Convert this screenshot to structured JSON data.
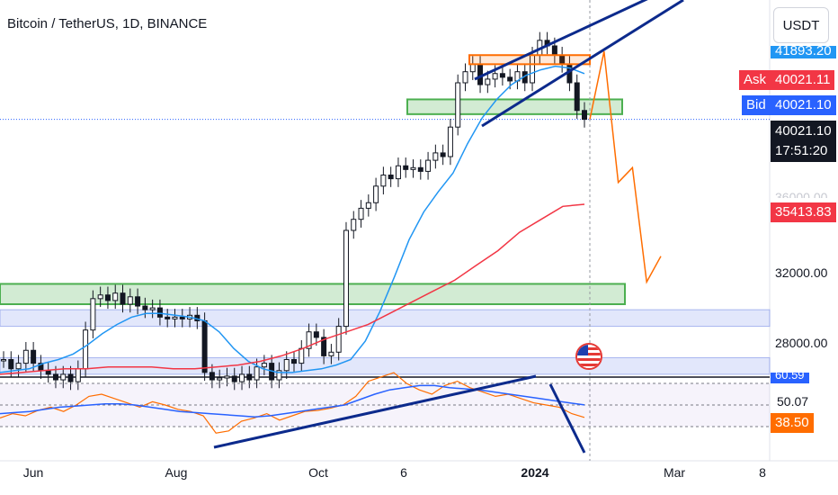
{
  "header": {
    "title": "Bitcoin / TetherUS, 1D, BINANCE"
  },
  "currency_button": {
    "label": "USDT"
  },
  "price_scale": {
    "top_value": "41893.20",
    "ask_label": "Ask",
    "ask_value": "40021.11",
    "bid_label": "Bid",
    "bid_value": "40021.10",
    "last_price": "40021.10",
    "countdown": "17:51:20",
    "mid_faded": "36000.00",
    "ma_value": "35413.83",
    "tick_32000": "32000.00",
    "tick_28000": "28000.00",
    "rsi_top_faded": "60.59",
    "rsi_ma_value": "50.07",
    "rsi_value": "38.50"
  },
  "x_axis": {
    "labels": [
      "Jun",
      "Aug",
      "Oct",
      "6",
      "2024",
      "Mar",
      "8"
    ]
  },
  "colors": {
    "candle": "#131722",
    "ma_fast": "#2196f3",
    "ma_slow": "#f23645",
    "rsi": "#ff6d00",
    "rsi_ma": "#2962ff",
    "trend": "#0c2a8c",
    "zone_green": "#4caf50",
    "zone_blue": "#b2c5f5",
    "resistance": "#ff6d00",
    "ask_box": "#f23645",
    "bid_box": "#2962ff",
    "price_box": "#131722",
    "ma_box": "#f23645",
    "rsi_box": "#ff6d00",
    "top_box": "#2196f3"
  },
  "chart_data": {
    "type": "candlestick",
    "symbol": "Bitcoin / TetherUS, 1D, BINANCE",
    "y_range": [
      25500,
      43500
    ],
    "y_ticks": [
      28000,
      32000,
      36000
    ],
    "x_axis_labels": [
      "Jun",
      "Aug",
      "Oct",
      "6",
      "2024",
      "Mar",
      "8"
    ],
    "last_price": 40021.1,
    "ask": 40021.11,
    "bid": 40021.1,
    "slow_ma_last": 35413.83,
    "series": [
      {
        "name": "price",
        "values": [
          27000,
          26500,
          26800,
          27500,
          26800,
          26400,
          26200,
          25900,
          26200,
          25800,
          26500,
          28600,
          30300,
          30500,
          30200,
          30600,
          30000,
          30400,
          29900,
          29700,
          29800,
          29300,
          29200,
          29300,
          29200,
          29400,
          29100,
          26300,
          25900,
          26000,
          26100,
          25800,
          26200,
          25900,
          26600,
          26800,
          25900,
          26400,
          27000,
          26800,
          27600,
          28500,
          28200,
          27200,
          27400,
          28800,
          34000,
          34600,
          35200,
          35500,
          36400,
          37000,
          36800,
          37500,
          37300,
          37400,
          37200,
          37800,
          38200,
          38000,
          39600,
          42000,
          42600,
          43000,
          41900,
          42200,
          42500,
          42300,
          42100,
          42600,
          42000,
          43500,
          44300,
          44000,
          43500,
          43000,
          42000,
          40500,
          40021
        ]
      },
      {
        "name": "fast_ma",
        "values": [
          26300,
          26400,
          26500,
          26800,
          27000,
          27300,
          27800,
          28400,
          28900,
          29300,
          29500,
          29500,
          29400,
          29300,
          29100,
          28500,
          27600,
          26900,
          26500,
          26300,
          26300,
          26400,
          26500,
          26700,
          27000,
          28000,
          29600,
          31500,
          33500,
          35000,
          36100,
          37100,
          38700,
          40100,
          41100,
          41900,
          42400,
          42700,
          42900,
          42800,
          42500
        ]
      },
      {
        "name": "slow_ma",
        "values": [
          26200,
          26300,
          26400,
          26500,
          26500,
          26600,
          26600,
          26600,
          26500,
          26500,
          26600,
          26700,
          26900,
          27200,
          27600,
          28100,
          28500,
          28900,
          29500,
          30100,
          30700,
          31300,
          32100,
          32900,
          33900,
          34600,
          35300,
          35413
        ]
      },
      {
        "name": "rsi",
        "values": [
          38,
          42,
          40,
          45,
          48,
          44,
          50,
          58,
          60,
          56,
          52,
          48,
          53,
          50,
          46,
          44,
          40,
          24,
          26,
          35,
          38,
          42,
          36,
          40,
          44,
          45,
          47,
          50,
          58,
          72,
          76,
          80,
          70,
          64,
          60,
          68,
          72,
          66,
          62,
          58,
          60,
          56,
          52,
          50,
          48,
          42,
          38.5
        ]
      },
      {
        "name": "rsi_ma",
        "values": [
          42,
          43,
          44,
          46,
          48,
          49,
          50,
          51,
          51,
          50,
          48,
          46,
          44,
          43,
          42,
          41,
          40,
          39,
          40,
          42,
          44,
          46,
          48,
          50,
          55,
          60,
          64,
          66,
          68,
          68,
          66,
          65,
          64,
          62,
          60,
          58,
          56,
          54,
          52,
          50.07
        ]
      }
    ],
    "zones": [
      {
        "kind": "support",
        "y": [
          40300,
          41100
        ]
      },
      {
        "kind": "support",
        "y": [
          30000,
          31100
        ]
      },
      {
        "kind": "range",
        "y": [
          28800,
          29700
        ]
      },
      {
        "kind": "range",
        "y": [
          26200,
          27100
        ]
      },
      {
        "kind": "resistance",
        "y": [
          43300,
          43500
        ]
      }
    ],
    "projection": [
      40021,
      43700,
      36600,
      37400,
      31200,
      32600
    ]
  }
}
